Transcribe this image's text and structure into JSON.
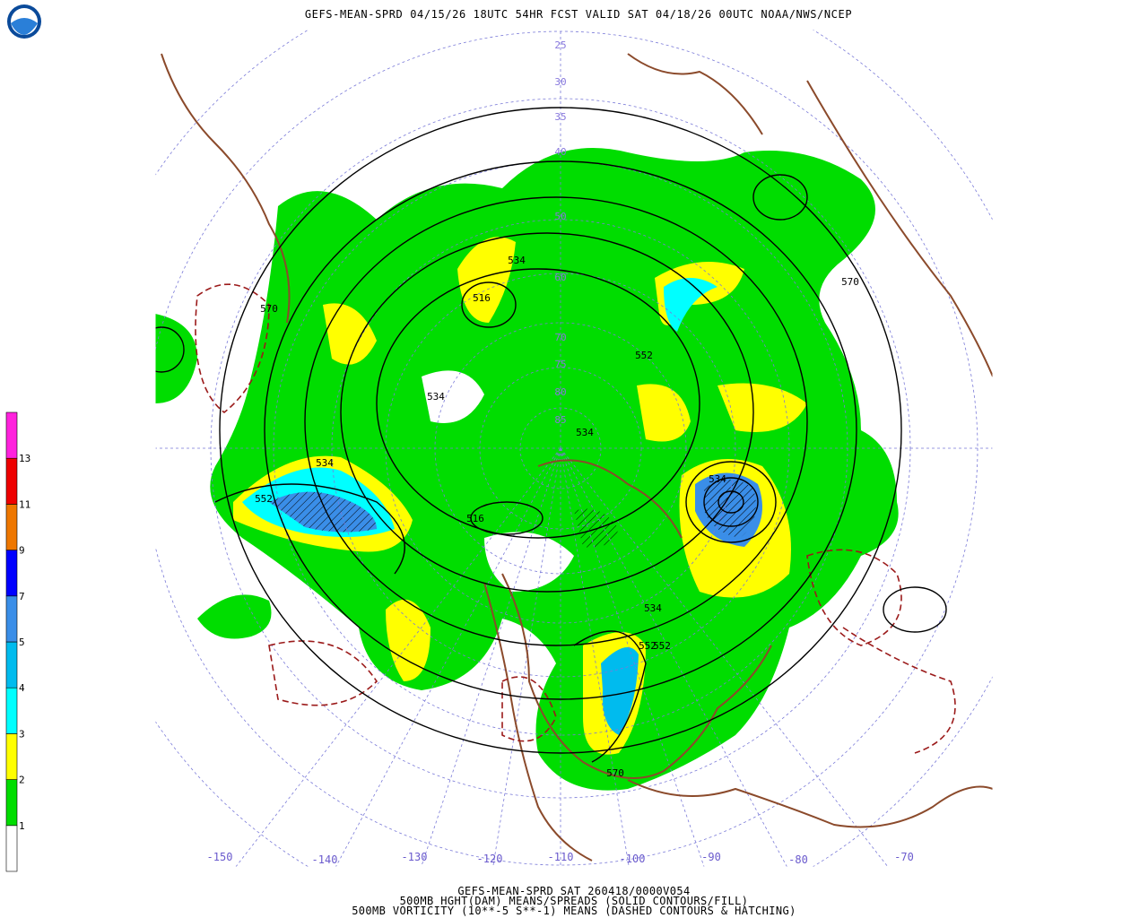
{
  "header": {
    "title": "GEFS-MEAN-SPRD 04/15/26 18UTC 54HR FCST VALID SAT 04/18/26 00UTC NOAA/NWS/NCEP"
  },
  "footer": {
    "lines": [
      "GEFS-MEAN-SPRD SAT 260418/0000V054",
      "500MB HGHT(DAM) MEANS/SPREADS (SOLID CONTOURS/FILL)",
      "500MB VORTICITY (10**-5 S**-1) MEANS (DASHED CONTOURS & HATCHING)"
    ]
  },
  "colorbar": {
    "labels": [
      1,
      2,
      3,
      4,
      5,
      7,
      9,
      11,
      13
    ],
    "colors": [
      "#ffffff",
      "#00dd00",
      "#ffff00",
      "#00ffff",
      "#00bbee",
      "#3a8ee8",
      "#0000ff",
      "#ee7700",
      "#ee0000",
      "#ff22dd"
    ]
  },
  "map": {
    "longitude_labels": [
      "-150",
      "-140",
      "-130",
      "-120",
      "-110",
      "-100",
      "-90",
      "-80",
      "-70"
    ],
    "latitude_labels": [
      "25",
      "30",
      "35",
      "40",
      "50",
      "60",
      "70",
      "75",
      "80",
      "85"
    ],
    "contour_labels": [
      "570",
      "570",
      "534",
      "516",
      "534",
      "552",
      "534",
      "534",
      "552",
      "552",
      "516",
      "534",
      "552",
      "570",
      "534"
    ]
  }
}
